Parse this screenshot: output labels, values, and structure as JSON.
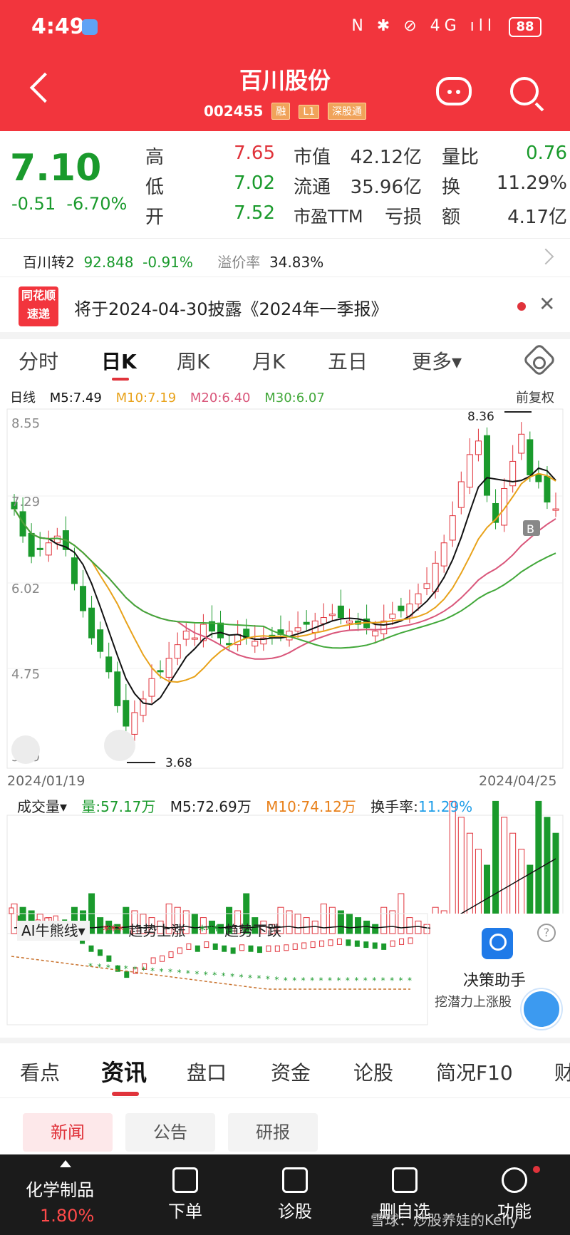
{
  "status_bar": {
    "time": "4:49",
    "icons": "N ✱ ⊘ 4G ıll",
    "battery": "88"
  },
  "header": {
    "stock_name": "百川股份",
    "stock_code": "002455",
    "tags": [
      "融",
      "L1",
      "深股通"
    ]
  },
  "quote": {
    "price": "7.10",
    "change": "-0.51",
    "change_pct": "-6.70%",
    "labels": {
      "high": "高",
      "low": "低",
      "open": "开",
      "mcap": "市值",
      "float": "流通",
      "pe": "市盈TTM",
      "vol_ratio": "量比",
      "turnover": "换",
      "amount": "额"
    },
    "values": {
      "high": "7.65",
      "low": "7.02",
      "open": "7.52",
      "mcap": "42.12亿",
      "float": "35.96亿",
      "pe": "亏损",
      "vol_ratio": "0.76",
      "turnover": "11.29%",
      "amount": "4.17亿"
    }
  },
  "convertible": {
    "name": "百川转2",
    "price": "92.848",
    "change_pct": "-0.91%",
    "premium_label": "溢价率",
    "premium": "34.83%"
  },
  "notice": {
    "logo_line1": "同花顺",
    "logo_line2": "速递",
    "text": "将于2024-04-30披露《2024年一季报》"
  },
  "period_tabs": [
    "分时",
    "日K",
    "周K",
    "月K",
    "五日",
    "更多▾"
  ],
  "kline": {
    "legend": {
      "type": "日线",
      "ma5": "M5:7.49",
      "ma10": "M10:7.19",
      "ma20": "M20:6.40",
      "ma30": "M30:6.07",
      "adjust": "前复权"
    },
    "y_ticks": [
      "8.55",
      "7.29",
      "6.02",
      "4.75",
      "3.49"
    ],
    "date_start": "2024/01/19",
    "date_end": "2024/04/25",
    "high_mark": "8.36",
    "low_mark": "3.68",
    "b_marker": "B"
  },
  "volume": {
    "label": "成交量▾",
    "vol": "量:57.17万",
    "m5": "M5:72.69万",
    "m10": "M10:74.12万",
    "turnover_label": "换手率:",
    "turnover": "11.29%"
  },
  "ai": {
    "label": "AI牛熊线▾",
    "up": "趋势上涨",
    "down": "趋势下跌",
    "assist_title": "决策助手",
    "assist_sub": "挖潜力上涨股"
  },
  "info_tabs": [
    "看点",
    "资讯",
    "盘口",
    "资金",
    "论股",
    "简况F10",
    "财"
  ],
  "news_pills": [
    "新闻",
    "公告",
    "研报"
  ],
  "bottom_bar": {
    "industry": "化学制品",
    "industry_pct": "1.80%",
    "items": [
      "下单",
      "诊股",
      "删自选",
      "功能"
    ],
    "watermark": "雪球：炒股养娃的Kelly"
  },
  "colors": {
    "red": "#e0333b",
    "green": "#1a9a2c",
    "ma5": "#111111",
    "ma10": "#e8a21a",
    "ma20": "#d9567a",
    "ma30": "#42a83a"
  }
}
